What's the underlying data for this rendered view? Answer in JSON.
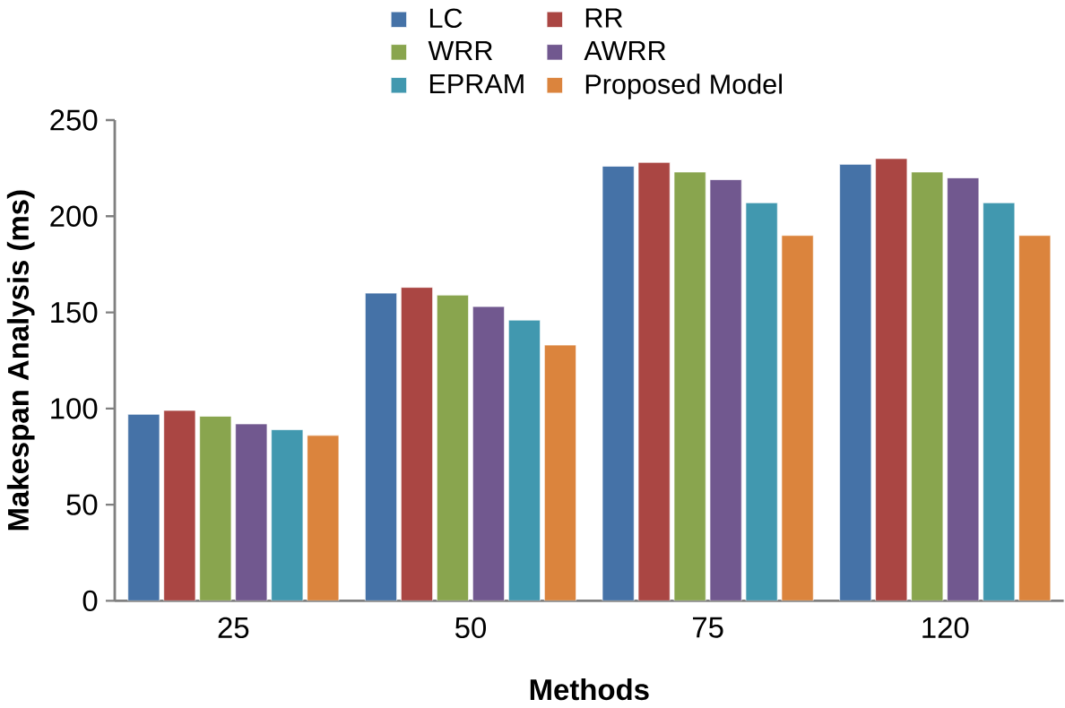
{
  "chart_data": {
    "type": "bar",
    "xlabel": "Methods",
    "ylabel": "Makespan Analysis (ms)",
    "categories": [
      "25",
      "50",
      "75",
      "120"
    ],
    "series": [
      {
        "name": "LC",
        "color": "#4572a7",
        "values": [
          97,
          160,
          226,
          227
        ]
      },
      {
        "name": "RR",
        "color": "#aa4643",
        "values": [
          99,
          163,
          228,
          230
        ]
      },
      {
        "name": "WRR",
        "color": "#89a54e",
        "values": [
          96,
          159,
          223,
          223
        ]
      },
      {
        "name": "AWRR",
        "color": "#71588f",
        "values": [
          92,
          153,
          219,
          220
        ]
      },
      {
        "name": "EPRAM",
        "color": "#4198af",
        "values": [
          89,
          146,
          207,
          207
        ]
      },
      {
        "name": "Proposed Model",
        "color": "#db843d",
        "values": [
          86,
          133,
          190,
          190
        ]
      }
    ],
    "ylim": [
      0,
      250
    ],
    "yticks": [
      0,
      50,
      100,
      150,
      200,
      250
    ],
    "legend": "top",
    "grid": false
  }
}
